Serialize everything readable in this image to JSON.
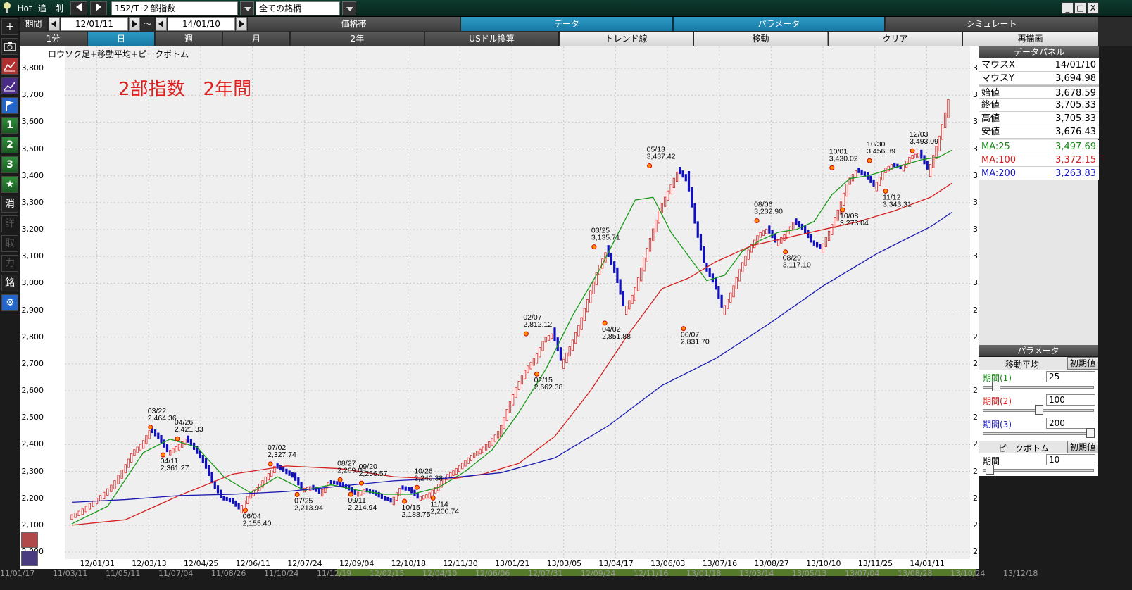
{
  "titlebar": {
    "logo": "bulb-icon",
    "hot": "Hot",
    "add": "追",
    "del": "削",
    "code": "152/T ２部指数",
    "filter": "全ての銘柄",
    "win_min": "_",
    "win_max": "□",
    "win_close": "X"
  },
  "toolbar": {
    "period_label": "期間",
    "from": "12/01/11",
    "tilde": "～",
    "to": "14/01/10",
    "tabs_top": [
      "価格帯",
      "データ",
      "パラメータ",
      "シミュレート"
    ],
    "active_top": "データ",
    "intervals": [
      "1分",
      "日",
      "週",
      "月",
      "2年"
    ],
    "active_interval": "日",
    "tools": [
      "USドル換算",
      "トレンド線",
      "移動",
      "クリア",
      "再描画"
    ]
  },
  "lefttools": [
    {
      "label": "+",
      "icon": "crosshair-icon"
    },
    {
      "label": "◙",
      "icon": "camera-icon"
    },
    {
      "label": "",
      "icon": "chart-red-icon"
    },
    {
      "label": "",
      "icon": "chart-purple-icon"
    },
    {
      "label": "",
      "icon": "flag-icon"
    },
    {
      "label": "1",
      "icon": "one-icon"
    },
    {
      "label": "2",
      "icon": "two-icon"
    },
    {
      "label": "3",
      "icon": "three-icon"
    },
    {
      "label": "★",
      "icon": "star-icon"
    },
    {
      "label": "消",
      "icon": "erase-icon"
    },
    {
      "label": "詳",
      "icon": "detail-icon"
    },
    {
      "label": "取",
      "icon": "take-icon"
    },
    {
      "label": "力",
      "icon": "power-icon"
    },
    {
      "label": "銘",
      "icon": "stock-icon"
    },
    {
      "label": "⚙",
      "icon": "gear-icon"
    }
  ],
  "chart_header": "ロウソク足+移動平均+ピークボトム",
  "chart_data": {
    "type": "line",
    "title": "2部指数　2年間",
    "ylim": [
      2000,
      3850
    ],
    "y_ticks": [
      "3,800",
      "3,700",
      "3,600",
      "3,500",
      "3,400",
      "3,300",
      "3,200",
      "3,100",
      "3,000",
      "2,900",
      "2,800",
      "2,700",
      "2,600",
      "2,500",
      "2,400",
      "2,300",
      "2,200",
      "2,100",
      "2,000"
    ],
    "x_ticks": [
      "12/01/31",
      "12/03/13",
      "12/04/25",
      "12/06/11",
      "12/07/24",
      "12/09/04",
      "12/10/18",
      "12/11/30",
      "13/01/21",
      "13/03/05",
      "13/04/17",
      "13/06/03",
      "13/07/16",
      "13/08/27",
      "13/10/10",
      "13/11/25",
      "14/01/11"
    ],
    "x_tick_index": [
      14,
      43,
      72,
      101,
      130,
      159,
      188,
      217,
      246,
      275,
      304,
      333,
      362,
      391,
      420,
      449,
      478
    ],
    "grid": true,
    "series": [
      {
        "color": "#d42020",
        "index": [
          0,
          6,
          12,
          18,
          24,
          30,
          35,
          40,
          45,
          50,
          55,
          60,
          65,
          70,
          75,
          80,
          85,
          90,
          95,
          100,
          105,
          110,
          115,
          120,
          125,
          130,
          135,
          140,
          145,
          150,
          155,
          160,
          165,
          170,
          175,
          180,
          185,
          190,
          195,
          200,
          205,
          210,
          215,
          220,
          225,
          230,
          235,
          240,
          245,
          250,
          255,
          260,
          265,
          270,
          275,
          280,
          285,
          290,
          295,
          300,
          305,
          310,
          315,
          320,
          325,
          330,
          335,
          340,
          345,
          350,
          355,
          360,
          365,
          370,
          375,
          380,
          385,
          390,
          395,
          400,
          405,
          410,
          415,
          420,
          425,
          430,
          435,
          440,
          445,
          450,
          455,
          460,
          465,
          470,
          475,
          480,
          485,
          490,
          492
        ],
        "values": [
          2130,
          2150,
          2180,
          2210,
          2250,
          2310,
          2370,
          2400,
          2455,
          2420,
          2370,
          2390,
          2420,
          2380,
          2330,
          2250,
          2200,
          2190,
          2160,
          2210,
          2240,
          2280,
          2320,
          2300,
          2280,
          2230,
          2240,
          2220,
          2260,
          2255,
          2240,
          2215,
          2230,
          2220,
          2200,
          2190,
          2240,
          2230,
          2200,
          2210,
          2240,
          2280,
          2300,
          2330,
          2360,
          2380,
          2410,
          2450,
          2540,
          2620,
          2680,
          2720,
          2790,
          2810,
          2700,
          2770,
          2850,
          2950,
          3050,
          3120,
          3030,
          2900,
          2960,
          3070,
          3180,
          3280,
          3350,
          3420,
          3380,
          3200,
          3060,
          3000,
          2900,
          2970,
          3060,
          3130,
          3180,
          3200,
          3150,
          3180,
          3230,
          3200,
          3150,
          3130,
          3200,
          3280,
          3380,
          3420,
          3400,
          3360,
          3420,
          3440,
          3430,
          3470,
          3480,
          3420,
          3520,
          3650,
          3705
        ]
      },
      {
        "color": "#1a9a1a",
        "index": [
          0,
          20,
          40,
          55,
          70,
          85,
          100,
          115,
          130,
          145,
          160,
          175,
          190,
          205,
          220,
          235,
          250,
          265,
          280,
          295,
          305,
          315,
          325,
          335,
          345,
          355,
          365,
          375,
          385,
          395,
          405,
          415,
          425,
          435,
          445,
          455,
          465,
          475,
          485,
          492
        ],
        "values": [
          2105,
          2170,
          2370,
          2420,
          2390,
          2280,
          2220,
          2280,
          2230,
          2250,
          2230,
          2215,
          2215,
          2240,
          2300,
          2380,
          2520,
          2680,
          2880,
          3050,
          3180,
          3310,
          3320,
          3190,
          3100,
          3010,
          3030,
          3120,
          3160,
          3190,
          3200,
          3230,
          3330,
          3390,
          3400,
          3420,
          3440,
          3460,
          3470,
          3495
        ]
      },
      {
        "color": "#d42020",
        "index": [
          0,
          30,
          60,
          90,
          120,
          150,
          180,
          210,
          230,
          250,
          270,
          290,
          310,
          330,
          345,
          360,
          380,
          400,
          420,
          440,
          460,
          480,
          492
        ],
        "values": [
          2100,
          2120,
          2210,
          2290,
          2320,
          2310,
          2280,
          2270,
          2290,
          2330,
          2430,
          2600,
          2800,
          2980,
          3020,
          3080,
          3140,
          3170,
          3200,
          3230,
          3270,
          3320,
          3372
        ]
      },
      {
        "color": "#1a1ab0",
        "index": [
          0,
          30,
          60,
          90,
          120,
          150,
          180,
          210,
          240,
          270,
          300,
          330,
          360,
          390,
          420,
          450,
          480,
          492
        ],
        "values": [
          2185,
          2195,
          2210,
          2215,
          2225,
          2245,
          2265,
          2275,
          2295,
          2350,
          2470,
          2620,
          2720,
          2850,
          2990,
          3110,
          3210,
          3264
        ]
      }
    ],
    "peaks": [
      {
        "i": 44,
        "v": 2464.36,
        "d": "03/22",
        "t": "2,464.36",
        "pos": "above"
      },
      {
        "i": 51,
        "v": 2361.27,
        "d": "04/11",
        "t": "2,361.27",
        "pos": "below"
      },
      {
        "i": 59,
        "v": 2421.33,
        "d": "04/26",
        "t": "2,421.33",
        "pos": "above"
      },
      {
        "i": 97,
        "v": 2155.4,
        "d": "06/04",
        "t": "2,155.40",
        "pos": "below"
      },
      {
        "i": 111,
        "v": 2327.74,
        "d": "07/02",
        "t": "2,327.74",
        "pos": "above"
      },
      {
        "i": 126,
        "v": 2213.94,
        "d": "07/25",
        "t": "2,213.94",
        "pos": "below"
      },
      {
        "i": 150,
        "v": 2269.08,
        "d": "08/27",
        "t": "2,269.08",
        "pos": "above"
      },
      {
        "i": 156,
        "v": 2214.94,
        "d": "09/11",
        "t": "2,214.94",
        "pos": "below"
      },
      {
        "i": 162,
        "v": 2256.57,
        "d": "09/20",
        "t": "2,256.57",
        "pos": "above"
      },
      {
        "i": 186,
        "v": 2188.75,
        "d": "10/15",
        "t": "2,188.75",
        "pos": "below"
      },
      {
        "i": 193,
        "v": 2240.38,
        "d": "10/26",
        "t": "2,240.38",
        "pos": "above"
      },
      {
        "i": 202,
        "v": 2200.74,
        "d": "11/14",
        "t": "2,200.74",
        "pos": "below"
      },
      {
        "i": 254,
        "v": 2812.12,
        "d": "02/07",
        "t": "2,812.12",
        "pos": "above"
      },
      {
        "i": 260,
        "v": 2662.38,
        "d": "02/15",
        "t": "2,662.38",
        "pos": "below"
      },
      {
        "i": 292,
        "v": 3135.71,
        "d": "03/25",
        "t": "3,135.71",
        "pos": "above"
      },
      {
        "i": 298,
        "v": 2851.88,
        "d": "04/02",
        "t": "2,851.88",
        "pos": "below"
      },
      {
        "i": 323,
        "v": 3437.42,
        "d": "05/13",
        "t": "3,437.42",
        "pos": "above"
      },
      {
        "i": 342,
        "v": 2831.7,
        "d": "06/07",
        "t": "2,831.70",
        "pos": "below"
      },
      {
        "i": 383,
        "v": 3232.9,
        "d": "08/06",
        "t": "3,232.90",
        "pos": "above"
      },
      {
        "i": 399,
        "v": 3117.1,
        "d": "08/29",
        "t": "3,117.10",
        "pos": "below"
      },
      {
        "i": 425,
        "v": 3430.02,
        "d": "10/01",
        "t": "3,430.02",
        "pos": "above"
      },
      {
        "i": 431,
        "v": 3273.04,
        "d": "10/08",
        "t": "3,273.04",
        "pos": "below"
      },
      {
        "i": 446,
        "v": 3456.39,
        "d": "10/30",
        "t": "3,456.39",
        "pos": "above"
      },
      {
        "i": 455,
        "v": 3343.31,
        "d": "11/12",
        "t": "3,343.31",
        "pos": "below"
      },
      {
        "i": 470,
        "v": 3493.09,
        "d": "12/03",
        "t": "3,493.09",
        "pos": "above"
      }
    ]
  },
  "datapanel": {
    "header": "データパネル",
    "rows": [
      {
        "k": "マウスX",
        "v": "14/01/10"
      },
      {
        "k": "マウスY",
        "v": "3,694.98"
      },
      {
        "k": "始値",
        "v": "3,678.59"
      },
      {
        "k": "終値",
        "v": "3,705.33"
      },
      {
        "k": "高値",
        "v": "3,705.33"
      },
      {
        "k": "安値",
        "v": "3,676.43"
      }
    ],
    "ma": [
      {
        "k": "MA:25",
        "v": "3,497.69",
        "color": "#1a8a1a"
      },
      {
        "k": "MA:100",
        "v": "3,372.15",
        "color": "#d42020"
      },
      {
        "k": "MA:200",
        "v": "3,263.83",
        "color": "#1a1ac0"
      }
    ]
  },
  "params": {
    "header": "パラメータ",
    "ma_label": "移動平均",
    "reset": "初期値",
    "items": [
      {
        "k": "期間(1)",
        "v": "25",
        "color": "#1a8a1a",
        "pos": 0.08
      },
      {
        "k": "期間(2)",
        "v": "100",
        "color": "#d42020",
        "pos": 0.5
      },
      {
        "k": "期間(3)",
        "v": "200",
        "color": "#1a1ac0",
        "pos": 1.0
      }
    ],
    "pb_label": "ピークボトム",
    "pb_period_label": "期間",
    "pb_period": "10",
    "pb_pos": 0.02
  },
  "bottomstrip": [
    "11/01/17",
    "11/03/11",
    "11/05/11",
    "11/07/04",
    "11/08/26",
    "11/10/24",
    "11/12/19",
    "12/02/15",
    "12/04/10",
    "12/06/06",
    "12/07/31",
    "12/09/24",
    "12/11/16",
    "13/01/18",
    "13/03/14",
    "13/05/13",
    "13/07/04",
    "13/08/28",
    "13/10/24",
    "13/12/18"
  ]
}
